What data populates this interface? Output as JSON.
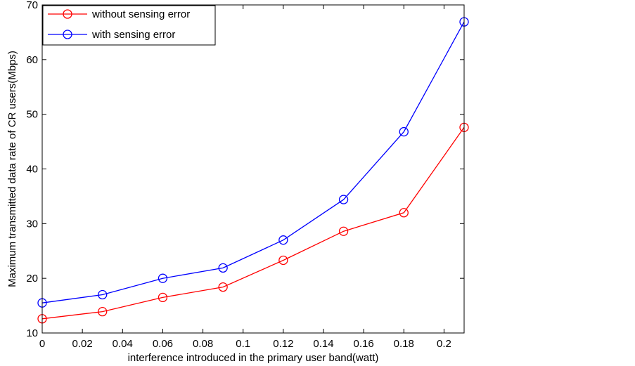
{
  "chart_data": {
    "type": "line",
    "title": "",
    "xlabel": "interference introduced in the primary user band(watt)",
    "ylabel": "Maximum transmitted data rate of CR users(Mbps)",
    "xlim": [
      0,
      0.21
    ],
    "ylim": [
      10,
      70
    ],
    "xticks": [
      0,
      0.02,
      0.04,
      0.06,
      0.08,
      0.1,
      0.12,
      0.14,
      0.16,
      0.18,
      0.2
    ],
    "xtick_labels": [
      "0",
      "0.02",
      "0.04",
      "0.06",
      "0.08",
      "0.1",
      "0.12",
      "0.14",
      "0.16",
      "0.18",
      "0.2"
    ],
    "yticks": [
      10,
      20,
      30,
      40,
      50,
      60,
      70
    ],
    "ytick_labels": [
      "10",
      "20",
      "30",
      "40",
      "50",
      "60",
      "70"
    ],
    "x": [
      0,
      0.03,
      0.06,
      0.09,
      0.12,
      0.15,
      0.18,
      0.21
    ],
    "series": [
      {
        "name": "without sensing error",
        "color": "#ff0000",
        "marker": "circle",
        "values": [
          12.6,
          13.9,
          16.5,
          18.4,
          23.3,
          28.6,
          32.0,
          47.6
        ]
      },
      {
        "name": "with sensing error",
        "color": "#0000ff",
        "marker": "circle",
        "values": [
          15.5,
          17.0,
          20.0,
          21.9,
          27.0,
          34.4,
          46.8,
          66.9
        ]
      }
    ],
    "grid": false,
    "legend_position": "top-left"
  }
}
